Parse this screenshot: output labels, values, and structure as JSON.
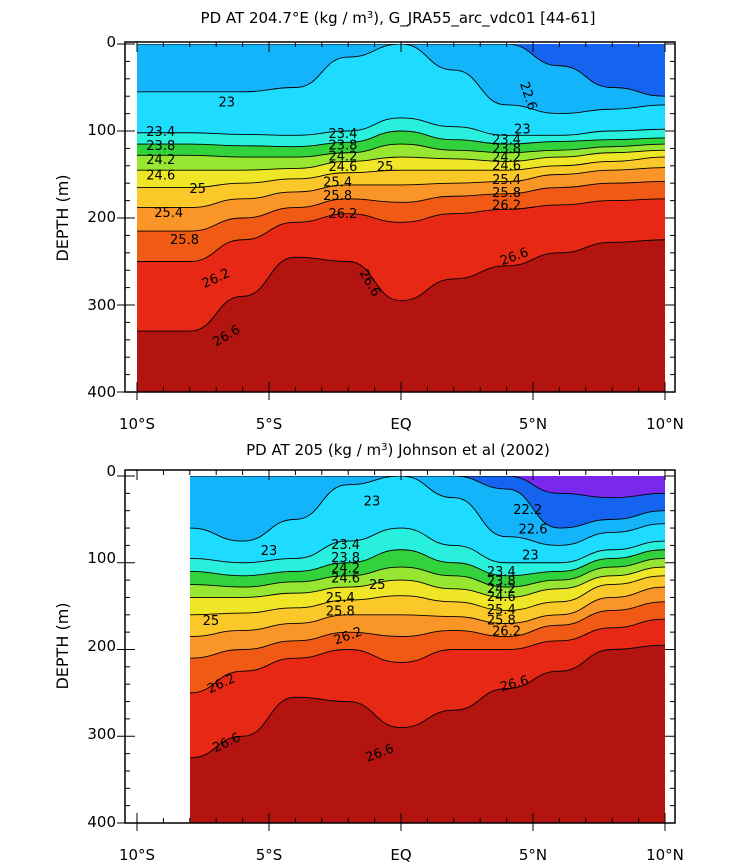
{
  "chart_data": [
    {
      "type": "contour",
      "title": "PD AT 204.7°E (kg / m³), G_JRA55_arc_vdc01 [44-61]",
      "title_main": "PD AT 204.7°E (kg / m",
      "title_sup": "3",
      "title_tail": "), G_JRA55_arc_vdc01 [44-61]",
      "ylabel": "DEPTH (m)",
      "x_ticks": [
        "10°S",
        "5°S",
        "EQ",
        "5°N",
        "10°N"
      ],
      "y_ticks": [
        "0",
        "100",
        "200",
        "300",
        "400"
      ],
      "xlim": [
        -10,
        10
      ],
      "ylim": [
        400,
        0
      ],
      "x": [
        -8,
        -6,
        -4,
        -2,
        0,
        2,
        4,
        6,
        8,
        10
      ],
      "contour_levels": [
        22.6,
        23,
        23.4,
        23.8,
        24.2,
        24.6,
        25,
        25.4,
        25.8,
        26.2,
        26.6
      ],
      "isopycnal_depths": [
        {
          "level": 22.6,
          "depth": [
            0,
            0,
            0,
            0,
            0,
            0,
            0,
            25,
            50,
            60
          ]
        },
        {
          "level": 23,
          "depth": [
            55,
            55,
            50,
            15,
            0,
            30,
            70,
            80,
            75,
            70
          ]
        },
        {
          "level": 23.4,
          "depth": [
            102,
            104,
            105,
            100,
            85,
            95,
            105,
            105,
            100,
            98
          ]
        },
        {
          "level": 23.8,
          "depth": [
            115,
            117,
            118,
            113,
            100,
            110,
            115,
            112,
            110,
            108
          ]
        },
        {
          "level": 24.2,
          "depth": [
            128,
            130,
            130,
            125,
            115,
            122,
            125,
            122,
            118,
            115
          ]
        },
        {
          "level": 24.6,
          "depth": [
            145,
            145,
            143,
            135,
            130,
            132,
            135,
            130,
            125,
            122
          ]
        },
        {
          "level": 25,
          "depth": [
            165,
            160,
            155,
            148,
            145,
            145,
            145,
            140,
            135,
            130
          ]
        },
        {
          "level": 25.4,
          "depth": [
            188,
            178,
            170,
            162,
            162,
            160,
            158,
            150,
            145,
            142
          ]
        },
        {
          "level": 25.8,
          "depth": [
            215,
            200,
            188,
            178,
            182,
            175,
            172,
            165,
            160,
            158
          ]
        },
        {
          "level": 26.2,
          "depth": [
            250,
            225,
            205,
            195,
            205,
            195,
            190,
            185,
            180,
            178
          ]
        },
        {
          "level": 26.6,
          "depth": [
            330,
            290,
            245,
            250,
            295,
            270,
            255,
            240,
            228,
            225
          ]
        }
      ],
      "contour_labels": [
        {
          "text": "22.6",
          "x": 4.8,
          "depth": 60,
          "rot": 72
        },
        {
          "text": "23",
          "x": -6.6,
          "depth": 68,
          "rot": 0
        },
        {
          "text": "23.4",
          "x": -9.1,
          "depth": 102,
          "rot": 0
        },
        {
          "text": "23.8",
          "x": -9.1,
          "depth": 118,
          "rot": 0
        },
        {
          "text": "24.2",
          "x": -9.1,
          "depth": 134,
          "rot": 0
        },
        {
          "text": "24.6",
          "x": -9.1,
          "depth": 152,
          "rot": 0
        },
        {
          "text": "25",
          "x": -7.7,
          "depth": 167,
          "rot": 0
        },
        {
          "text": "25.4",
          "x": -8.8,
          "depth": 195,
          "rot": 0
        },
        {
          "text": "25.8",
          "x": -8.2,
          "depth": 226,
          "rot": 0
        },
        {
          "text": "26.2",
          "x": -7.0,
          "depth": 270,
          "rot": -25
        },
        {
          "text": "26.6",
          "x": -6.6,
          "depth": 336,
          "rot": -30
        },
        {
          "text": "23.4",
          "x": -2.2,
          "depth": 104,
          "rot": 0
        },
        {
          "text": "23.8",
          "x": -2.2,
          "depth": 117,
          "rot": 0
        },
        {
          "text": "24.2",
          "x": -2.2,
          "depth": 130,
          "rot": 0
        },
        {
          "text": "24.6",
          "x": -2.2,
          "depth": 142,
          "rot": 0
        },
        {
          "text": "25",
          "x": -0.6,
          "depth": 142,
          "rot": 0
        },
        {
          "text": "25.4",
          "x": -2.4,
          "depth": 160,
          "rot": 0
        },
        {
          "text": "25.8",
          "x": -2.4,
          "depth": 175,
          "rot": 0
        },
        {
          "text": "26.2",
          "x": -2.2,
          "depth": 196,
          "rot": 0
        },
        {
          "text": "26.6",
          "x": -1.2,
          "depth": 275,
          "rot": 60
        },
        {
          "text": "23",
          "x": 4.6,
          "depth": 99,
          "rot": 0
        },
        {
          "text": "23.4",
          "x": 4.0,
          "depth": 111,
          "rot": 0
        },
        {
          "text": "23.8",
          "x": 4.0,
          "depth": 121,
          "rot": 0
        },
        {
          "text": "24.2",
          "x": 4.0,
          "depth": 131,
          "rot": 0
        },
        {
          "text": "24.6",
          "x": 4.0,
          "depth": 141,
          "rot": 0
        },
        {
          "text": "25.4",
          "x": 4.0,
          "depth": 157,
          "rot": 0
        },
        {
          "text": "25.8",
          "x": 4.0,
          "depth": 172,
          "rot": 0
        },
        {
          "text": "26.2",
          "x": 4.0,
          "depth": 186,
          "rot": 0
        },
        {
          "text": "26.6",
          "x": 4.3,
          "depth": 245,
          "rot": -20
        }
      ]
    },
    {
      "type": "contour",
      "title": "PD AT 205 (kg / m³) Johnson et al (2002)",
      "title_main": "PD AT 205 (kg / m",
      "title_sup": "3",
      "title_tail": ") Johnson et al (2002)",
      "ylabel": "DEPTH (m)",
      "x_ticks": [
        "10°S",
        "5°S",
        "EQ",
        "5°N",
        "10°N"
      ],
      "y_ticks": [
        "0",
        "100",
        "200",
        "300",
        "400"
      ],
      "xlim": [
        -10,
        10
      ],
      "ylim": [
        400,
        0
      ],
      "data_x_start": -8,
      "x": [
        -8,
        -6,
        -4,
        -2,
        0,
        2,
        4,
        6,
        8,
        10
      ],
      "contour_levels": [
        22.2,
        22.6,
        23,
        23.4,
        23.8,
        24.2,
        24.6,
        25,
        25.4,
        25.8,
        26.2,
        26.6
      ],
      "isopycnal_depths": [
        {
          "level": 22.2,
          "depth": [
            0,
            0,
            0,
            0,
            0,
            0,
            0,
            20,
            25,
            20
          ]
        },
        {
          "level": 22.6,
          "depth": [
            0,
            0,
            0,
            0,
            0,
            0,
            15,
            60,
            50,
            40
          ]
        },
        {
          "level": 23,
          "depth": [
            60,
            75,
            50,
            10,
            0,
            25,
            70,
            80,
            65,
            55
          ]
        },
        {
          "level": 23.4,
          "depth": [
            95,
            100,
            95,
            75,
            60,
            80,
            100,
            100,
            85,
            75
          ]
        },
        {
          "level": 23.8,
          "depth": [
            110,
            115,
            110,
            100,
            85,
            100,
            115,
            110,
            95,
            85
          ]
        },
        {
          "level": 24.2,
          "depth": [
            125,
            128,
            122,
            115,
            105,
            115,
            128,
            120,
            105,
            95
          ]
        },
        {
          "level": 24.6,
          "depth": [
            140,
            140,
            135,
            128,
            120,
            130,
            140,
            130,
            115,
            105
          ]
        },
        {
          "level": 25,
          "depth": [
            160,
            158,
            152,
            143,
            138,
            145,
            155,
            145,
            125,
            115
          ]
        },
        {
          "level": 25.4,
          "depth": [
            185,
            178,
            170,
            160,
            160,
            162,
            170,
            160,
            140,
            128
          ]
        },
        {
          "level": 25.8,
          "depth": [
            210,
            200,
            190,
            180,
            185,
            178,
            185,
            172,
            155,
            145
          ]
        },
        {
          "level": 26.2,
          "depth": [
            250,
            225,
            210,
            200,
            215,
            200,
            200,
            190,
            175,
            165
          ]
        },
        {
          "level": 26.6,
          "depth": [
            325,
            300,
            255,
            260,
            290,
            270,
            245,
            225,
            200,
            195
          ]
        }
      ],
      "contour_labels": [
        {
          "text": "22.2",
          "x": 4.8,
          "depth": 40,
          "rot": 0
        },
        {
          "text": "22.6",
          "x": 5.0,
          "depth": 62,
          "rot": 0
        },
        {
          "text": "23",
          "x": -5.0,
          "depth": 87,
          "rot": 0
        },
        {
          "text": "23",
          "x": -1.1,
          "depth": 30,
          "rot": 0
        },
        {
          "text": "23",
          "x": 4.9,
          "depth": 92,
          "rot": 0
        },
        {
          "text": "23.4",
          "x": -2.1,
          "depth": 80,
          "rot": 0
        },
        {
          "text": "23.8",
          "x": -2.1,
          "depth": 95,
          "rot": 0
        },
        {
          "text": "24.2",
          "x": -2.1,
          "depth": 107,
          "rot": 0
        },
        {
          "text": "24.6",
          "x": -2.1,
          "depth": 119,
          "rot": 0
        },
        {
          "text": "25",
          "x": -0.9,
          "depth": 126,
          "rot": 0
        },
        {
          "text": "25.4",
          "x": -2.3,
          "depth": 141,
          "rot": 0
        },
        {
          "text": "25.8",
          "x": -2.3,
          "depth": 157,
          "rot": 0
        },
        {
          "text": "26.2",
          "x": -2.0,
          "depth": 185,
          "rot": -20
        },
        {
          "text": "23.4",
          "x": 3.8,
          "depth": 111,
          "rot": 0
        },
        {
          "text": "23.8",
          "x": 3.8,
          "depth": 122,
          "rot": 0
        },
        {
          "text": "24.2",
          "x": 3.8,
          "depth": 131,
          "rot": 0
        },
        {
          "text": "24.6",
          "x": 3.8,
          "depth": 140,
          "rot": 0
        },
        {
          "text": "25.4",
          "x": 3.8,
          "depth": 155,
          "rot": 0
        },
        {
          "text": "25.8",
          "x": 3.8,
          "depth": 167,
          "rot": 0
        },
        {
          "text": "26.2",
          "x": 4.0,
          "depth": 180,
          "rot": 0
        },
        {
          "text": "25",
          "x": -7.2,
          "depth": 168,
          "rot": 0
        },
        {
          "text": "26.2",
          "x": -6.8,
          "depth": 240,
          "rot": -25
        },
        {
          "text": "26.6",
          "x": -6.6,
          "depth": 308,
          "rot": -25
        },
        {
          "text": "26.6",
          "x": -0.8,
          "depth": 320,
          "rot": -20
        },
        {
          "text": "26.6",
          "x": 4.3,
          "depth": 240,
          "rot": -15
        }
      ]
    }
  ]
}
